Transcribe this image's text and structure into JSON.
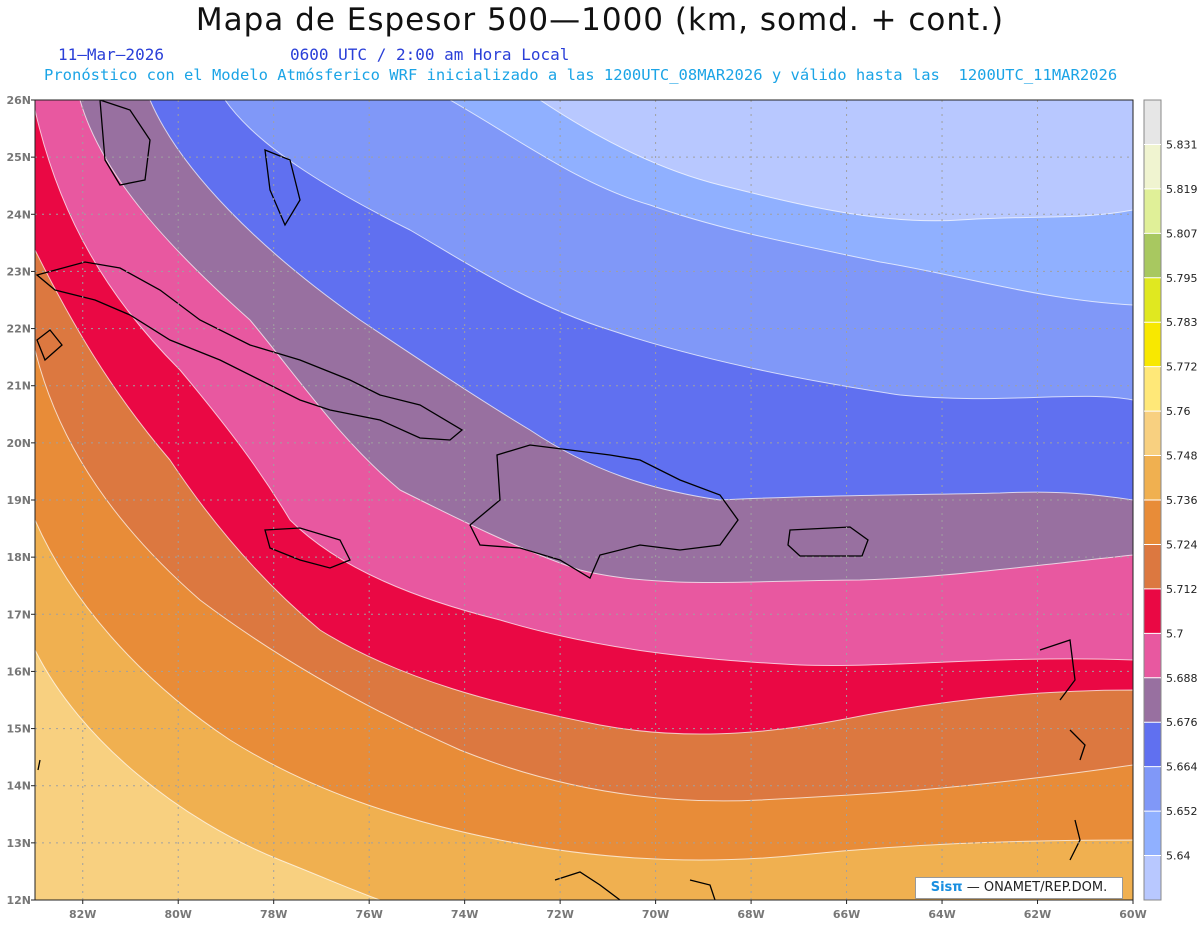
{
  "header": {
    "title": "Mapa de Espesor 500—1000 (km, somd. + cont.)",
    "date": "11—Mar—2026",
    "time": "0600 UTC / 2:00 am Hora Local",
    "info": "Pronóstico con el Modelo Atmósferico WRF inicializado a las 1200UTC_08MAR2026 y válido hasta las  1200UTC_11MAR2026"
  },
  "axes": {
    "lat_labels": [
      "26N",
      "25N",
      "24N",
      "23N",
      "22N",
      "21N",
      "20N",
      "19N",
      "18N",
      "17N",
      "16N",
      "15N",
      "14N",
      "13N",
      "12N"
    ],
    "lon_labels": [
      "82W",
      "80W",
      "78W",
      "76W",
      "74W",
      "72W",
      "70W",
      "68W",
      "66W",
      "64W",
      "62W",
      "60W"
    ]
  },
  "colorbar": {
    "levels": [
      "5.831",
      "5.819",
      "5.807",
      "5.795",
      "5.783",
      "5.772",
      "5.76",
      "5.748",
      "5.736",
      "5.724",
      "5.712",
      "5.7",
      "5.688",
      "5.676",
      "5.664",
      "5.652",
      "5.64"
    ],
    "colors": [
      "#e6e6e6",
      "#f0f4d0",
      "#e0f098",
      "#a8c860",
      "#e0e820",
      "#f8e800",
      "#ffe878",
      "#f8d080",
      "#f0b050",
      "#e88c38",
      "#dc7840",
      "#ea0844",
      "#e858a0",
      "#9870a0",
      "#6070f0",
      "#8098f8",
      "#90b0ff",
      "#b8c8ff"
    ]
  },
  "map": {
    "bands": [
      "#b8c8ff",
      "#90b0ff",
      "#8098f8",
      "#6070f0",
      "#9870a0",
      "#e858a0",
      "#ea0844",
      "#dc7840",
      "#e88c38",
      "#f0b050",
      "#f8d080"
    ]
  },
  "credit": {
    "brand": "Sisπ",
    "text": "— ONAMET/REP.DOM."
  }
}
